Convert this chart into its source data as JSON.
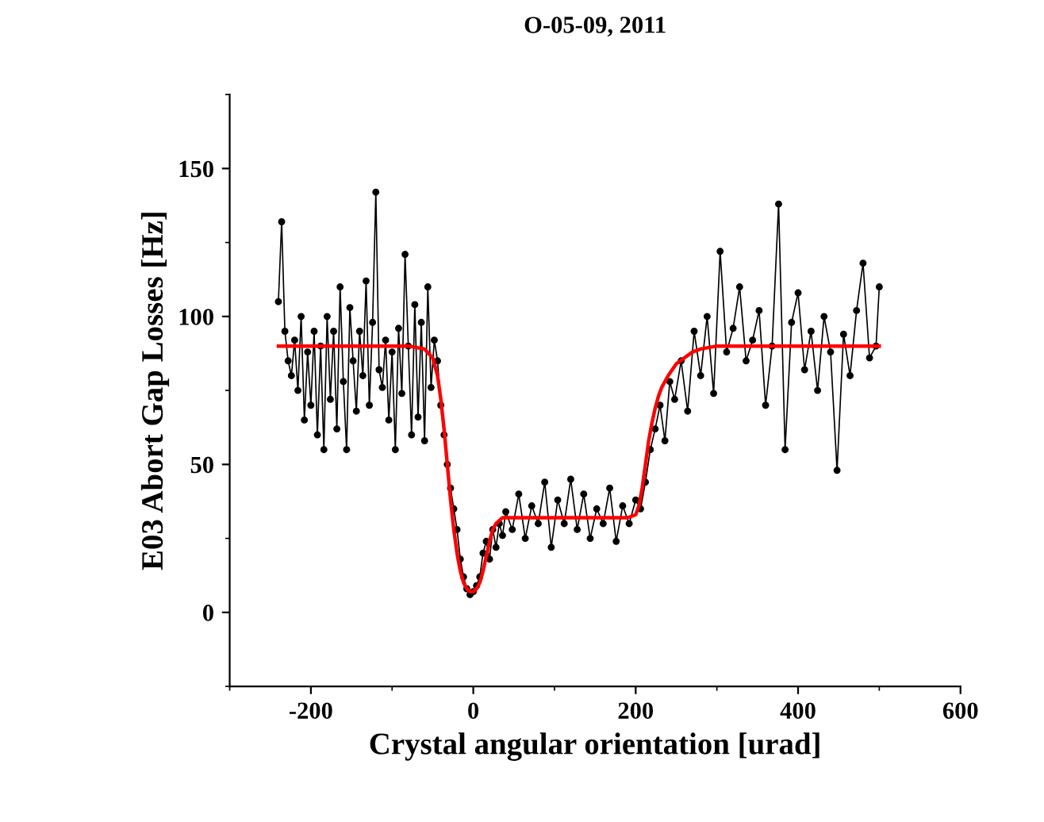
{
  "chart_data": {
    "type": "line",
    "title": "O-05-09, 2011",
    "xlabel": "Crystal angular orientation [urad]",
    "ylabel": "E03 Abort Gap Losses [Hz]",
    "xlim": [
      -300,
      600
    ],
    "xticks": [
      -200,
      0,
      200,
      400,
      600
    ],
    "ylim": [
      -25,
      175
    ],
    "yticks": [
      0,
      50,
      100,
      150
    ],
    "grid": false,
    "legend": false,
    "series": [
      {
        "color": "#000000",
        "marker": "circle",
        "x": [
          -240,
          -236,
          -232,
          -228,
          -224,
          -220,
          -216,
          -212,
          -208,
          -204,
          -200,
          -196,
          -192,
          -188,
          -184,
          -180,
          -176,
          -172,
          -168,
          -164,
          -160,
          -156,
          -152,
          -148,
          -144,
          -140,
          -136,
          -132,
          -128,
          -124,
          -120,
          -116,
          -112,
          -108,
          -104,
          -100,
          -96,
          -92,
          -88,
          -84,
          -80,
          -76,
          -72,
          -68,
          -64,
          -60,
          -56,
          -52,
          -48,
          -44,
          -40,
          -36,
          -32,
          -28,
          -24,
          -20,
          -16,
          -12,
          -8,
          -4,
          0,
          4,
          8,
          12,
          16,
          20,
          24,
          28,
          32,
          36,
          40,
          48,
          56,
          64,
          72,
          80,
          88,
          96,
          104,
          112,
          120,
          128,
          136,
          144,
          152,
          160,
          168,
          176,
          184,
          192,
          200,
          206,
          212,
          218,
          224,
          230,
          236,
          242,
          248,
          256,
          264,
          272,
          280,
          288,
          296,
          304,
          312,
          320,
          328,
          336,
          344,
          352,
          360,
          368,
          376,
          384,
          392,
          400,
          408,
          416,
          424,
          432,
          440,
          448,
          456,
          464,
          472,
          480,
          488,
          496,
          500
        ],
        "values": [
          105,
          132,
          95,
          85,
          80,
          92,
          75,
          100,
          65,
          88,
          70,
          95,
          60,
          90,
          55,
          100,
          72,
          95,
          62,
          110,
          78,
          55,
          103,
          85,
          68,
          95,
          80,
          112,
          70,
          98,
          142,
          82,
          76,
          92,
          65,
          88,
          55,
          96,
          74,
          121,
          90,
          60,
          104,
          66,
          98,
          58,
          110,
          76,
          92,
          85,
          70,
          60,
          50,
          42,
          35,
          28,
          18,
          12,
          8,
          6,
          7,
          9,
          12,
          20,
          24,
          18,
          28,
          22,
          30,
          26,
          34,
          28,
          40,
          25,
          36,
          30,
          44,
          22,
          38,
          30,
          45,
          28,
          40,
          25,
          35,
          30,
          42,
          24,
          36,
          30,
          38,
          35,
          44,
          55,
          62,
          70,
          58,
          78,
          72,
          85,
          68,
          95,
          80,
          100,
          74,
          122,
          88,
          96,
          110,
          85,
          92,
          102,
          70,
          90,
          138,
          55,
          98,
          108,
          82,
          95,
          75,
          100,
          88,
          48,
          94,
          80,
          102,
          118,
          86,
          90,
          110
        ]
      },
      {
        "color": "#ff0000",
        "marker": "none",
        "x": [
          -240,
          -150,
          -80,
          -60,
          -50,
          -44,
          -40,
          -36,
          -32,
          -28,
          -24,
          -20,
          -16,
          -12,
          -8,
          -4,
          0,
          4,
          8,
          12,
          16,
          20,
          24,
          28,
          32,
          36,
          40,
          50,
          80,
          120,
          160,
          190,
          200,
          204,
          208,
          212,
          216,
          220,
          224,
          228,
          232,
          240,
          250,
          260,
          270,
          280,
          300,
          350,
          400,
          500
        ],
        "values": [
          90,
          90,
          90,
          89,
          86,
          80,
          72,
          62,
          50,
          38,
          28,
          20,
          14,
          10,
          8,
          7,
          7,
          8,
          10,
          14,
          19,
          24,
          28,
          30,
          31,
          32,
          32,
          32,
          32,
          32,
          32,
          32,
          33,
          36,
          42,
          50,
          58,
          64,
          69,
          73,
          76,
          80,
          84,
          86,
          88,
          89,
          90,
          90,
          90,
          90
        ]
      }
    ]
  }
}
